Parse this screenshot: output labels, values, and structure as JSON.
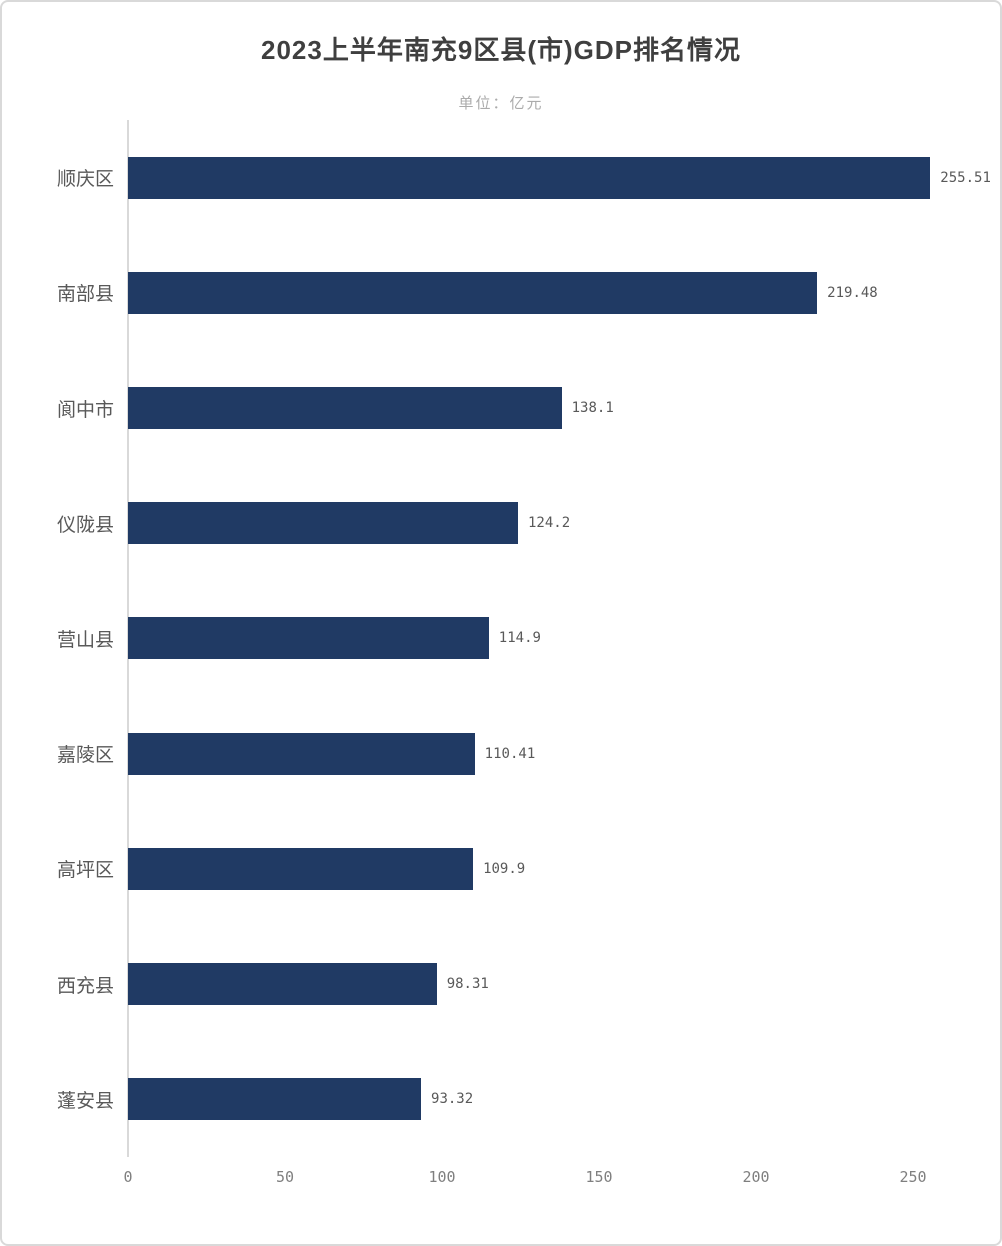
{
  "title": "2023上半年南充9区县(市)GDP排名情况",
  "subtitle": "单位：亿元",
  "chart_data": {
    "type": "bar",
    "orientation": "horizontal",
    "title": "2023上半年南充9区县(市)GDP排名情况",
    "subtitle": "单位：亿元",
    "categories": [
      "顺庆区",
      "南部县",
      "阆中市",
      "仪陇县",
      "营山县",
      "嘉陵区",
      "高坪区",
      "西充县",
      "蓬安县"
    ],
    "values": [
      255.51,
      219.48,
      138.1,
      124.2,
      114.9,
      110.41,
      109.9,
      98.31,
      93.32
    ],
    "value_labels": [
      "255.51",
      "219.48",
      "138.1",
      "124.2",
      "114.9",
      "110.41",
      "109.9",
      "98.31",
      "93.32"
    ],
    "xlabel": "",
    "ylabel": "",
    "xlim": [
      0,
      265
    ],
    "x_ticks": [
      0,
      50,
      100,
      150,
      200,
      250
    ],
    "grid": false,
    "legend": false,
    "colors": {
      "bar": "#203a64",
      "axis_line": "#d9d9d9",
      "title_text": "#3f3f3f",
      "subtitle_text": "#ababab",
      "category_text": "#595959",
      "value_text": "#595959",
      "tick_text": "#7f7f7f"
    }
  }
}
